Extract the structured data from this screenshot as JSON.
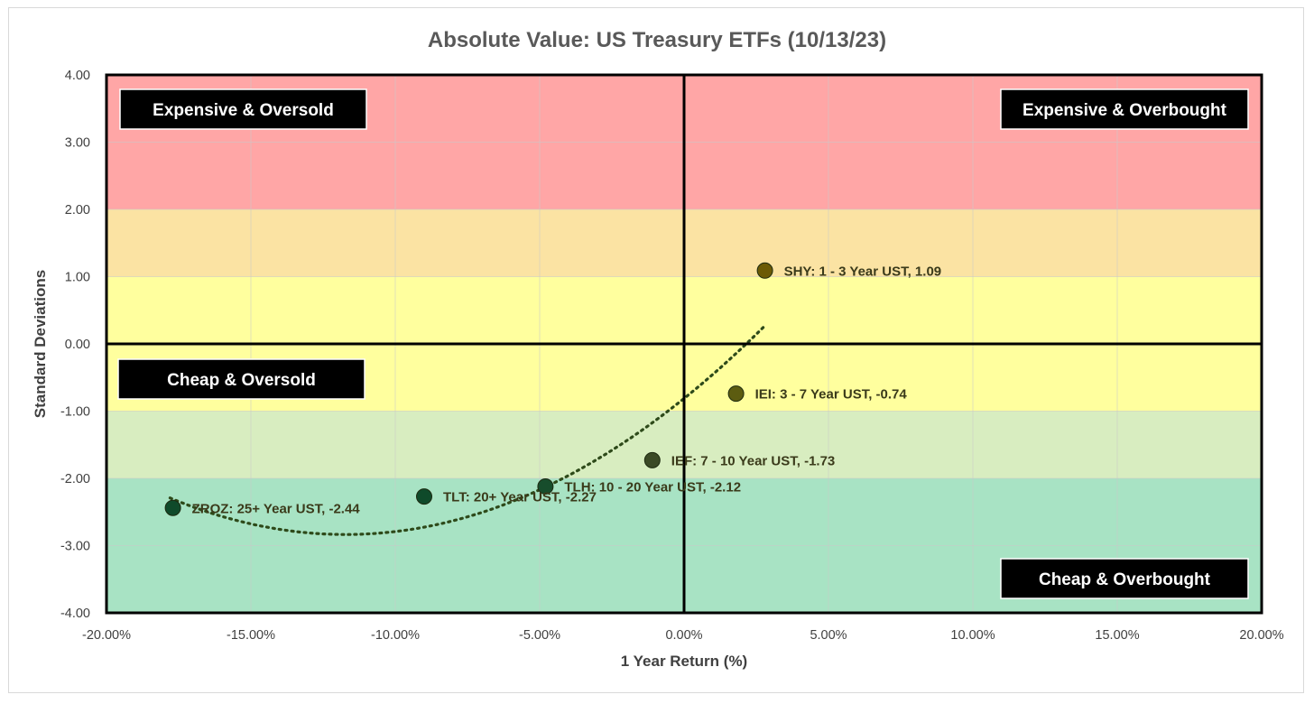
{
  "chart_data": {
    "type": "scatter",
    "title": "Absolute Value: US Treasury ETFs (10/13/23)",
    "xlabel": "1 Year Return (%)",
    "ylabel": "Standard Deviations",
    "xlim": [
      -0.2,
      0.2
    ],
    "ylim": [
      -4,
      4
    ],
    "x_ticks": [
      -0.2,
      -0.15,
      -0.1,
      -0.05,
      0.0,
      0.05,
      0.1,
      0.15,
      0.2
    ],
    "x_tick_labels": [
      "-20.00%",
      "-15.00%",
      "-10.00%",
      "-5.00%",
      "0.00%",
      "5.00%",
      "10.00%",
      "15.00%",
      "20.00%"
    ],
    "y_ticks": [
      4,
      3,
      2,
      1,
      0,
      -1,
      -2,
      -3,
      -4
    ],
    "y_tick_labels": [
      "4.00",
      "3.00",
      "2.00",
      "1.00",
      "0.00",
      "-1.00",
      "-2.00",
      "-3.00",
      "-4.00"
    ],
    "grid": true,
    "bands": [
      {
        "from": 2,
        "to": 4,
        "color": "#ffa6a6"
      },
      {
        "from": 1,
        "to": 2,
        "color": "#fbe3a3"
      },
      {
        "from": -1,
        "to": 1,
        "color": "#ffff9e"
      },
      {
        "from": -2,
        "to": -1,
        "color": "#d8edc0"
      },
      {
        "from": -4,
        "to": -2,
        "color": "#a8e3c4"
      }
    ],
    "quadrant_labels": [
      {
        "text": "Expensive & Oversold",
        "position": "top-left"
      },
      {
        "text": "Expensive & Overbought",
        "position": "top-right"
      },
      {
        "text": "Cheap & Oversold",
        "position": "middle-left"
      },
      {
        "text": "Cheap & Overbought",
        "position": "bottom-right"
      }
    ],
    "points": [
      {
        "x": 0.028,
        "y": 1.09,
        "label": "SHY: 1 - 3 Year UST, 1.09",
        "color": "#6b5a06"
      },
      {
        "x": 0.018,
        "y": -0.74,
        "label": "IEI: 3 - 7 Year UST, -0.74",
        "color": "#5c5c10"
      },
      {
        "x": -0.011,
        "y": -1.73,
        "label": "IEF: 7 - 10 Year UST, -1.73",
        "color": "#3b4a26"
      },
      {
        "x": -0.048,
        "y": -2.12,
        "label": "TLH: 10 - 20 Year UST, -2.12",
        "color": "#174d2c"
      },
      {
        "x": -0.09,
        "y": -2.27,
        "label": "TLT: 20+ Year UST, -2.27",
        "color": "#0f4a2a"
      },
      {
        "x": -0.177,
        "y": -2.44,
        "label": "ZROZ: 25+ Year UST, -2.44",
        "color": "#0f4a2a"
      }
    ],
    "trendline": {
      "type": "polynomial",
      "style": "dotted",
      "color": "#2e4a1a",
      "x_range": [
        -0.178,
        0.028
      ]
    }
  }
}
